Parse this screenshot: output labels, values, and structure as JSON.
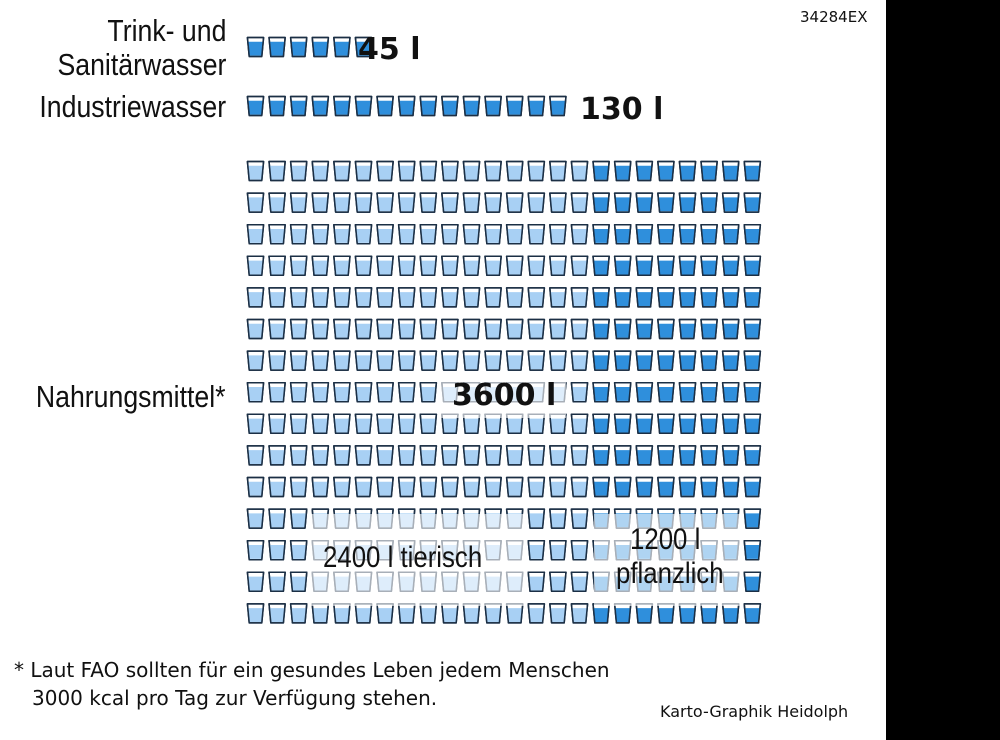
{
  "image_code": "34284EX",
  "credit": "Karto-Graphik Heidolph",
  "footnote": {
    "line1": "* Laut FAO sollten für ein gesundes Leben jedem Menschen",
    "line2": "3000 kcal pro Tag zur Verfügung stehen."
  },
  "colors": {
    "glass_light": "#a8d0f4",
    "glass_dark": "#2f8fdc",
    "glass_outline": "#1b2f45",
    "background": "#ffffff"
  },
  "chart_data": {
    "type": "pictogram",
    "unit": "l",
    "categories": [
      {
        "label_line1": "Trink- und",
        "label_line2": "Sanitärwasser",
        "value": 45,
        "value_label": "45 l"
      },
      {
        "label": "Industriewasser",
        "value": 130,
        "value_label": "130 l"
      },
      {
        "label": "Nahrungsmittel*",
        "value": 3600,
        "value_label": "3600 l",
        "breakdown": [
          {
            "value": 2400,
            "label": "2400 l tierisch"
          },
          {
            "value": 1200,
            "label_line1": "1200 l",
            "label_line2": "pflanzlich"
          }
        ]
      }
    ],
    "icon": "water-glass-icon"
  }
}
